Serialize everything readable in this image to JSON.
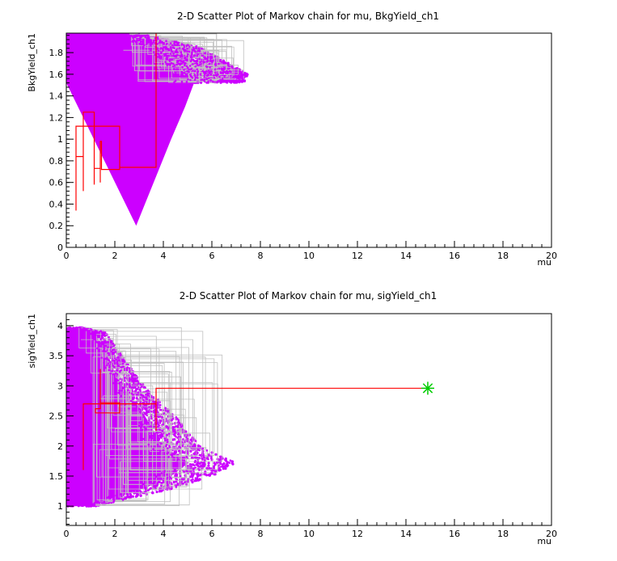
{
  "chart_data": [
    {
      "type": "scatter",
      "title": "2-D Scatter Plot of Markov chain for mu, BkgYield_ch1",
      "xlabel": "mu",
      "ylabel": "BkgYield_ch1",
      "xlim": [
        0,
        20
      ],
      "ylim": [
        0,
        1.98
      ],
      "x_ticks": [
        0,
        2,
        4,
        6,
        8,
        10,
        12,
        14,
        16,
        18,
        20
      ],
      "x_tick_labels": [
        "0",
        "2",
        "4",
        "6",
        "8",
        "10",
        "12",
        "14",
        "16",
        "18",
        "20"
      ],
      "y_ticks": [
        0,
        0.2,
        0.4,
        0.6,
        0.8,
        1.0,
        1.2,
        1.4,
        1.6,
        1.8
      ],
      "y_tick_labels": [
        "0",
        "0.2",
        "0.4",
        "0.6",
        "0.8",
        "1",
        "1.2",
        "1.4",
        "1.6",
        "1.8"
      ],
      "grid": false,
      "colors": {
        "points": "#cc00ff",
        "chain": "#ff0000",
        "steps": "#c0c0c0"
      },
      "cloud": {
        "x_max_at": [
          [
            1.52,
            0
          ],
          [
            0.2,
            4.0
          ],
          [
            0.6,
            5.0
          ],
          [
            1.0,
            6.0
          ],
          [
            1.3,
            6.8
          ],
          [
            1.6,
            7.5
          ],
          [
            1.85,
            5.5
          ],
          [
            1.98,
            3.0
          ]
        ]
      },
      "burn_in_path": [
        [
          3.7,
          1.98
        ],
        [
          3.7,
          0.74
        ],
        [
          2.2,
          0.74
        ],
        [
          2.2,
          1.12
        ],
        [
          0.4,
          1.12
        ],
        [
          0.4,
          0.34
        ],
        [
          0.4,
          0.84
        ],
        [
          0.7,
          0.84
        ],
        [
          0.7,
          0.52
        ],
        [
          0.7,
          1.25
        ],
        [
          1.15,
          1.25
        ],
        [
          1.15,
          0.58
        ],
        [
          1.15,
          0.73
        ],
        [
          1.4,
          0.73
        ],
        [
          1.4,
          0.6
        ],
        [
          1.4,
          0.98
        ],
        [
          1.45,
          0.98
        ],
        [
          1.45,
          0.72
        ],
        [
          2.2,
          0.72
        ],
        [
          2.2,
          0.74
        ]
      ]
    },
    {
      "type": "scatter",
      "title": "2-D Scatter Plot of Markov chain for mu, sigYield_ch1",
      "xlabel": "mu",
      "ylabel": "sigYield_ch1",
      "xlim": [
        0,
        20
      ],
      "ylim": [
        0.68,
        4.2
      ],
      "x_ticks": [
        0,
        2,
        4,
        6,
        8,
        10,
        12,
        14,
        16,
        18,
        20
      ],
      "x_tick_labels": [
        "0",
        "2",
        "4",
        "6",
        "8",
        "10",
        "12",
        "14",
        "16",
        "18",
        "20"
      ],
      "y_ticks": [
        1,
        1.5,
        2,
        2.5,
        3,
        3.5,
        4
      ],
      "y_tick_labels": [
        "1",
        "1.5",
        "2",
        "2.5",
        "3",
        "3.5",
        "4"
      ],
      "grid": false,
      "colors": {
        "points": "#cc00ff",
        "chain": "#ff0000",
        "steps": "#c0c0c0",
        "start": "#00cc00"
      },
      "cloud": {
        "x_max_at": [
          [
            1.0,
            1.2
          ],
          [
            1.3,
            4.5
          ],
          [
            1.5,
            6.0
          ],
          [
            1.72,
            7.0
          ],
          [
            2.0,
            5.5
          ],
          [
            2.5,
            4.5
          ],
          [
            3.0,
            3.2
          ],
          [
            3.5,
            2.3
          ],
          [
            3.9,
            1.6
          ],
          [
            3.97,
            0.6
          ]
        ]
      },
      "start_point": {
        "x": 14.9,
        "y": 2.96
      },
      "burn_in_path": [
        [
          14.9,
          2.96
        ],
        [
          3.7,
          2.96
        ],
        [
          3.7,
          2.25
        ],
        [
          3.7,
          2.7
        ],
        [
          0.7,
          2.7
        ],
        [
          0.7,
          1.6
        ],
        [
          0.7,
          2.7
        ],
        [
          1.4,
          2.7
        ],
        [
          1.4,
          3.28
        ],
        [
          1.4,
          2.62
        ],
        [
          1.2,
          2.62
        ],
        [
          1.2,
          2.55
        ],
        [
          2.2,
          2.55
        ],
        [
          2.2,
          2.72
        ],
        [
          1.4,
          2.72
        ]
      ]
    }
  ]
}
